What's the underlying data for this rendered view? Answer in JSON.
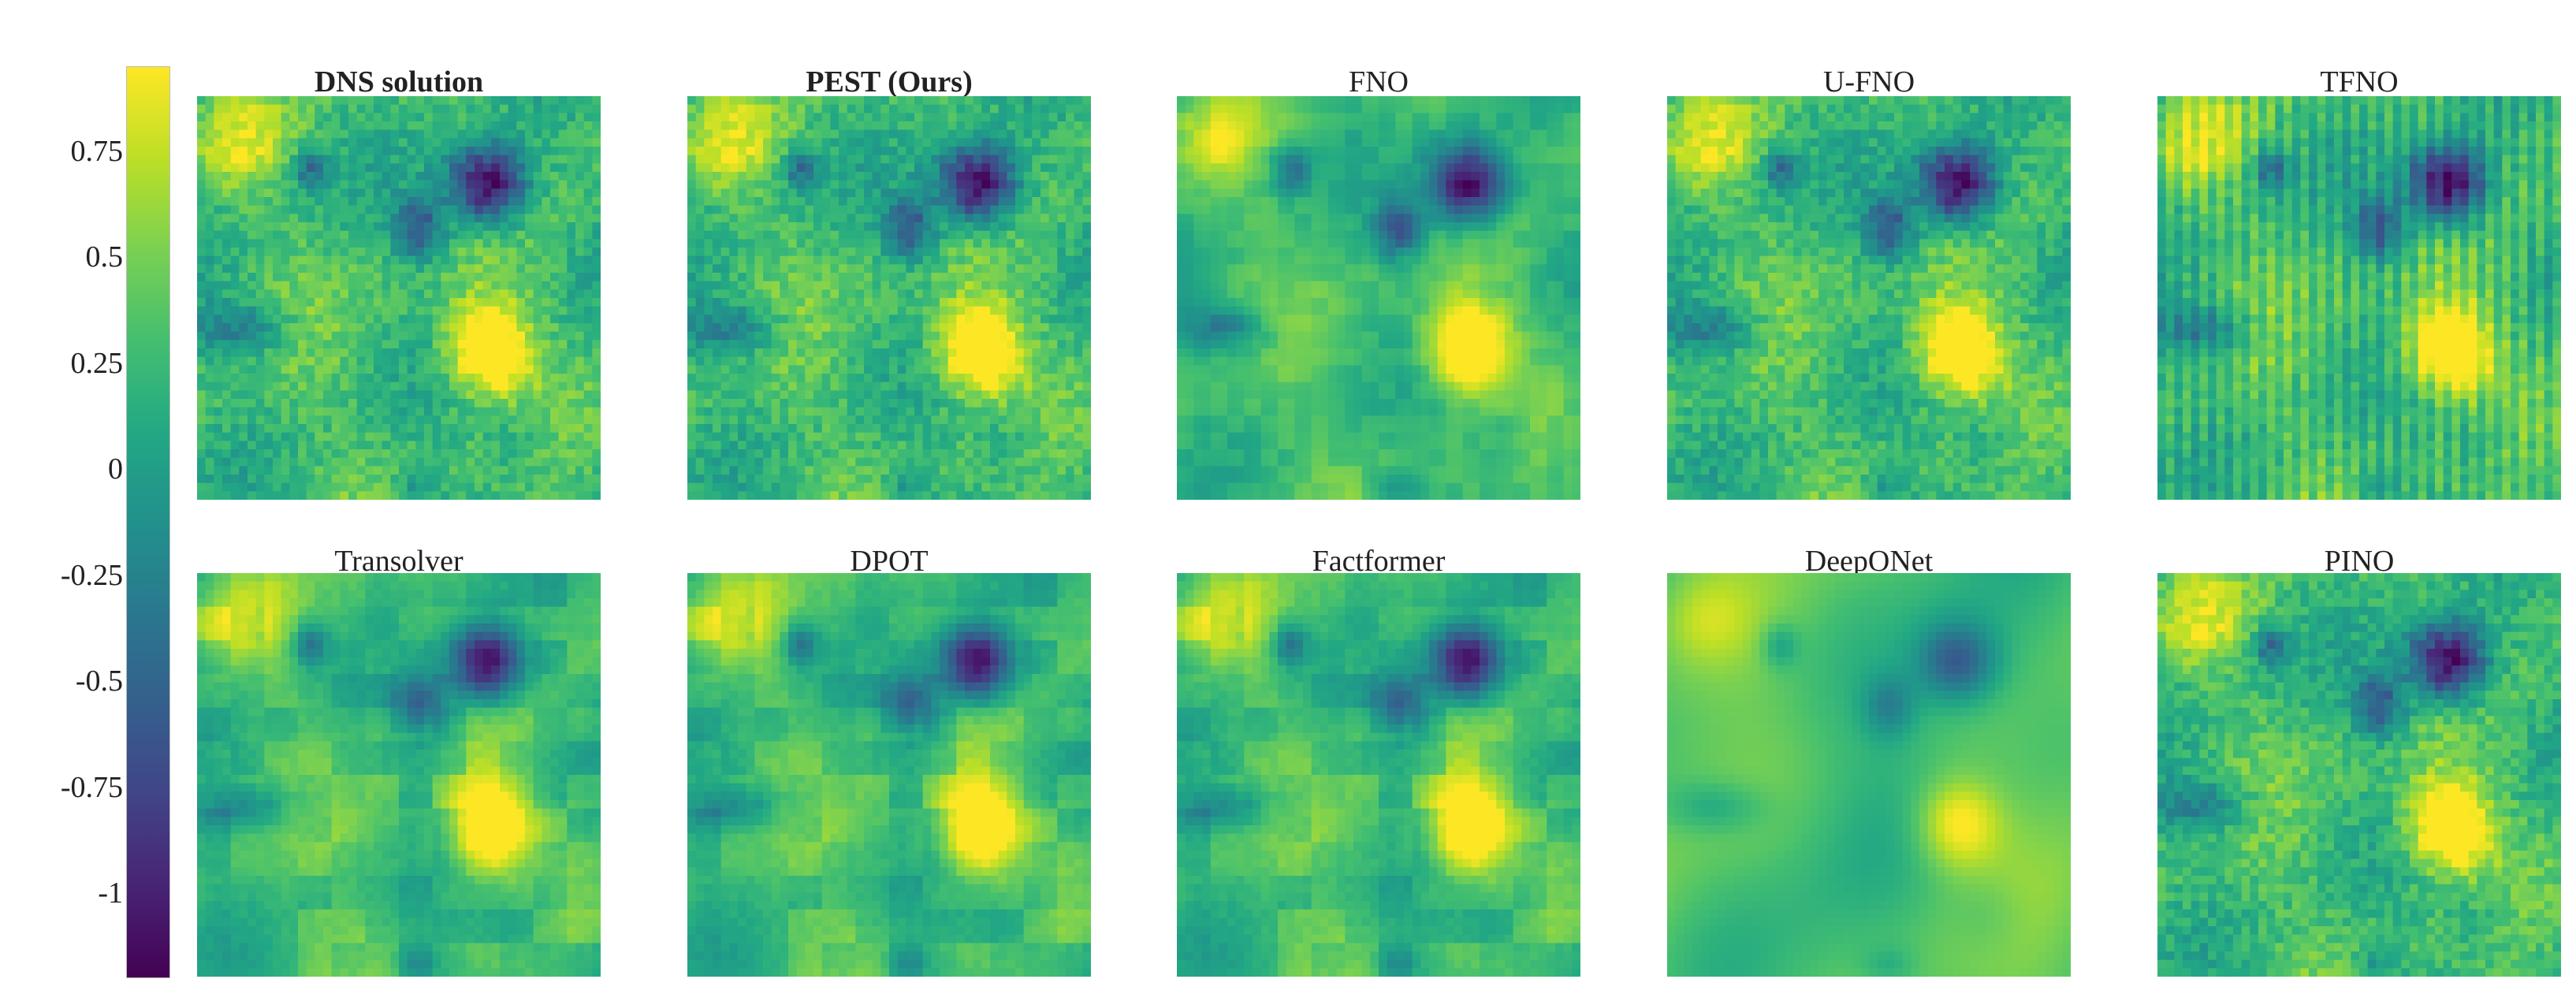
{
  "chart_data": {
    "type": "heatmap",
    "colormap": "viridis",
    "colorbar": {
      "vmin": -1.2,
      "vmax": 0.95,
      "ticks": [
        0.75,
        0.5,
        0.25,
        0,
        -0.25,
        -0.5,
        -0.75,
        -1
      ],
      "tick_labels": [
        "0.75",
        "0.5",
        "0.25",
        "0",
        "-0.25",
        "-0.5",
        "-0.75",
        "-1"
      ],
      "position": "left"
    },
    "panels": [
      {
        "title": "DNS solution",
        "bold": true,
        "style": "sharp"
      },
      {
        "title": "PEST (Ours)",
        "bold": true,
        "style": "sharp"
      },
      {
        "title": "FNO",
        "bold": false,
        "style": "smooth"
      },
      {
        "title": "U-FNO",
        "bold": false,
        "style": "sharp"
      },
      {
        "title": "TFNO",
        "bold": false,
        "style": "striped"
      },
      {
        "title": "Transolver",
        "bold": false,
        "style": "blocky"
      },
      {
        "title": "DPOT",
        "bold": false,
        "style": "blocky"
      },
      {
        "title": "Factformer",
        "bold": false,
        "style": "blocky"
      },
      {
        "title": "DeepONet",
        "bold": false,
        "style": "blurred"
      },
      {
        "title": "PINO",
        "bold": false,
        "style": "sharp"
      }
    ],
    "grid": {
      "rows": 2,
      "cols": 5
    }
  }
}
